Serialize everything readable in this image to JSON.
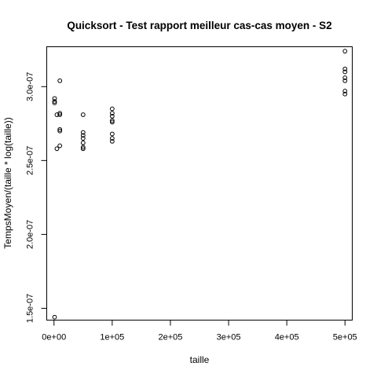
{
  "chart_data": {
    "type": "scatter",
    "title": "Quicksort - Test rapport meilleur cas-cas moyen - S2",
    "xlabel": "taille",
    "ylabel": "TempsMoyen/(taille * log(taille))",
    "xlim": [
      -12500,
      512500
    ],
    "ylim": [
      1.42e-07,
      3.27e-07
    ],
    "x_ticks": [
      {
        "value": 0,
        "label": "0e+00"
      },
      {
        "value": 100000,
        "label": "1e+05"
      },
      {
        "value": 200000,
        "label": "2e+05"
      },
      {
        "value": 300000,
        "label": "3e+05"
      },
      {
        "value": 400000,
        "label": "4e+05"
      },
      {
        "value": 500000,
        "label": "5e+05"
      }
    ],
    "y_ticks": [
      {
        "value": 1.5e-07,
        "label": "1.5e-07"
      },
      {
        "value": 2e-07,
        "label": "2.0e-07"
      },
      {
        "value": 2.5e-07,
        "label": "2.5e-07"
      },
      {
        "value": 3e-07,
        "label": "3.0e-07"
      }
    ],
    "grid": false,
    "legend": "none",
    "marker": "open-circle",
    "points": [
      {
        "x": 1000,
        "y": 2.92e-07
      },
      {
        "x": 1000,
        "y": 2.9e-07
      },
      {
        "x": 1000,
        "y": 2.89e-07
      },
      {
        "x": 1000,
        "y": 1.44e-07
      },
      {
        "x": 5000,
        "y": 2.81e-07
      },
      {
        "x": 5000,
        "y": 2.58e-07
      },
      {
        "x": 10000,
        "y": 3.04e-07
      },
      {
        "x": 10000,
        "y": 2.82e-07
      },
      {
        "x": 10000,
        "y": 2.81e-07
      },
      {
        "x": 10000,
        "y": 2.71e-07
      },
      {
        "x": 10000,
        "y": 2.7e-07
      },
      {
        "x": 10000,
        "y": 2.6e-07
      },
      {
        "x": 50000,
        "y": 2.81e-07
      },
      {
        "x": 50000,
        "y": 2.69e-07
      },
      {
        "x": 50000,
        "y": 2.67e-07
      },
      {
        "x": 50000,
        "y": 2.65e-07
      },
      {
        "x": 50000,
        "y": 2.62e-07
      },
      {
        "x": 50000,
        "y": 2.59e-07
      },
      {
        "x": 50000,
        "y": 2.58e-07
      },
      {
        "x": 100000,
        "y": 2.85e-07
      },
      {
        "x": 100000,
        "y": 2.82e-07
      },
      {
        "x": 100000,
        "y": 2.8e-07
      },
      {
        "x": 100000,
        "y": 2.77e-07
      },
      {
        "x": 100000,
        "y": 2.76e-07
      },
      {
        "x": 100000,
        "y": 2.68e-07
      },
      {
        "x": 100000,
        "y": 2.65e-07
      },
      {
        "x": 100000,
        "y": 2.63e-07
      },
      {
        "x": 500000,
        "y": 3.24e-07
      },
      {
        "x": 500000,
        "y": 3.12e-07
      },
      {
        "x": 500000,
        "y": 3.1e-07
      },
      {
        "x": 500000,
        "y": 3.06e-07
      },
      {
        "x": 500000,
        "y": 3.04e-07
      },
      {
        "x": 500000,
        "y": 2.97e-07
      },
      {
        "x": 500000,
        "y": 2.95e-07
      }
    ]
  }
}
